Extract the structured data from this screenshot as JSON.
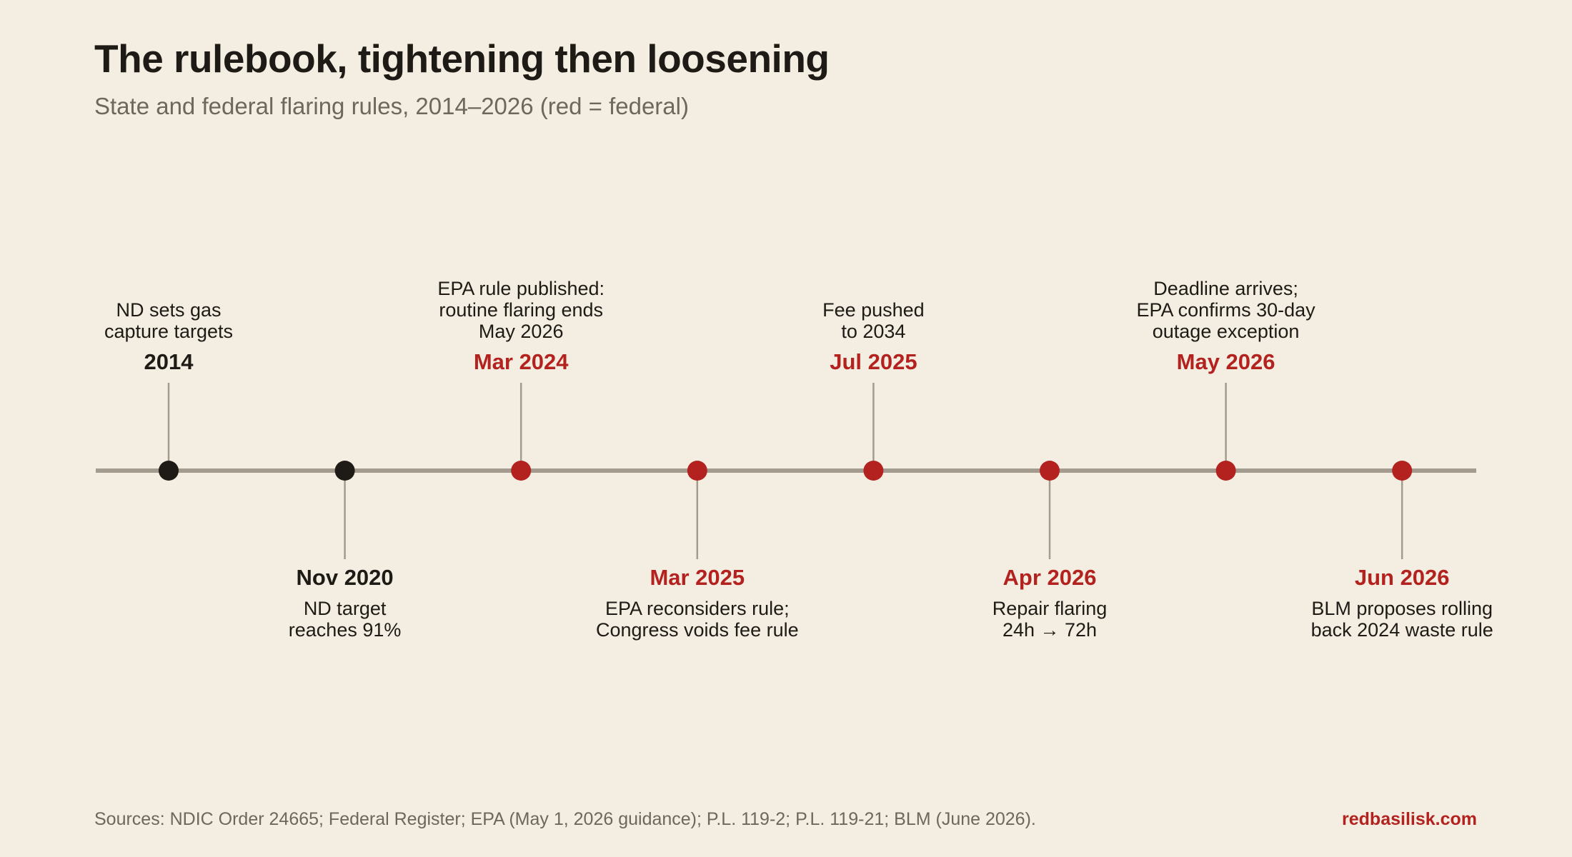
{
  "header": {
    "title": "The rulebook, tightening then loosening",
    "subtitle": "State and federal flaring rules, 2014–2026 (red = federal)"
  },
  "colors": {
    "state": "#1e1b16",
    "federal": "#b3221f",
    "axis": "#a39c8e",
    "background": "#f3eee1"
  },
  "events": [
    {
      "date": "2014",
      "category": "state",
      "position": "above",
      "description": [
        "ND sets gas",
        "capture targets"
      ]
    },
    {
      "date": "Nov 2020",
      "category": "state",
      "position": "below",
      "description": [
        "ND target",
        "reaches 91%"
      ]
    },
    {
      "date": "Mar 2024",
      "category": "federal",
      "position": "above",
      "description": [
        "EPA rule published:",
        "routine flaring ends",
        "May 2026"
      ]
    },
    {
      "date": "Mar 2025",
      "category": "federal",
      "position": "below",
      "description": [
        "EPA reconsiders rule;",
        "Congress voids fee rule"
      ]
    },
    {
      "date": "Jul 2025",
      "category": "federal",
      "position": "above",
      "description": [
        "Fee pushed",
        "to 2034"
      ]
    },
    {
      "date": "Apr 2026",
      "category": "federal",
      "position": "below",
      "description": [
        "Repair flaring",
        "24h → 72h"
      ]
    },
    {
      "date": "May 2026",
      "category": "federal",
      "position": "above",
      "description": [
        "Deadline arrives;",
        "EPA confirms 30-day",
        "outage exception"
      ]
    },
    {
      "date": "Jun 2026",
      "category": "federal",
      "position": "below",
      "description": [
        "BLM proposes rolling",
        "back 2024 waste rule"
      ]
    }
  ],
  "footer": {
    "sources": "Sources: NDIC Order 24665; Federal Register; EPA (May 1, 2026 guidance); P.L. 119-2; P.L. 119-21; BLM (June 2026).",
    "brand": "redbasilisk.com"
  }
}
